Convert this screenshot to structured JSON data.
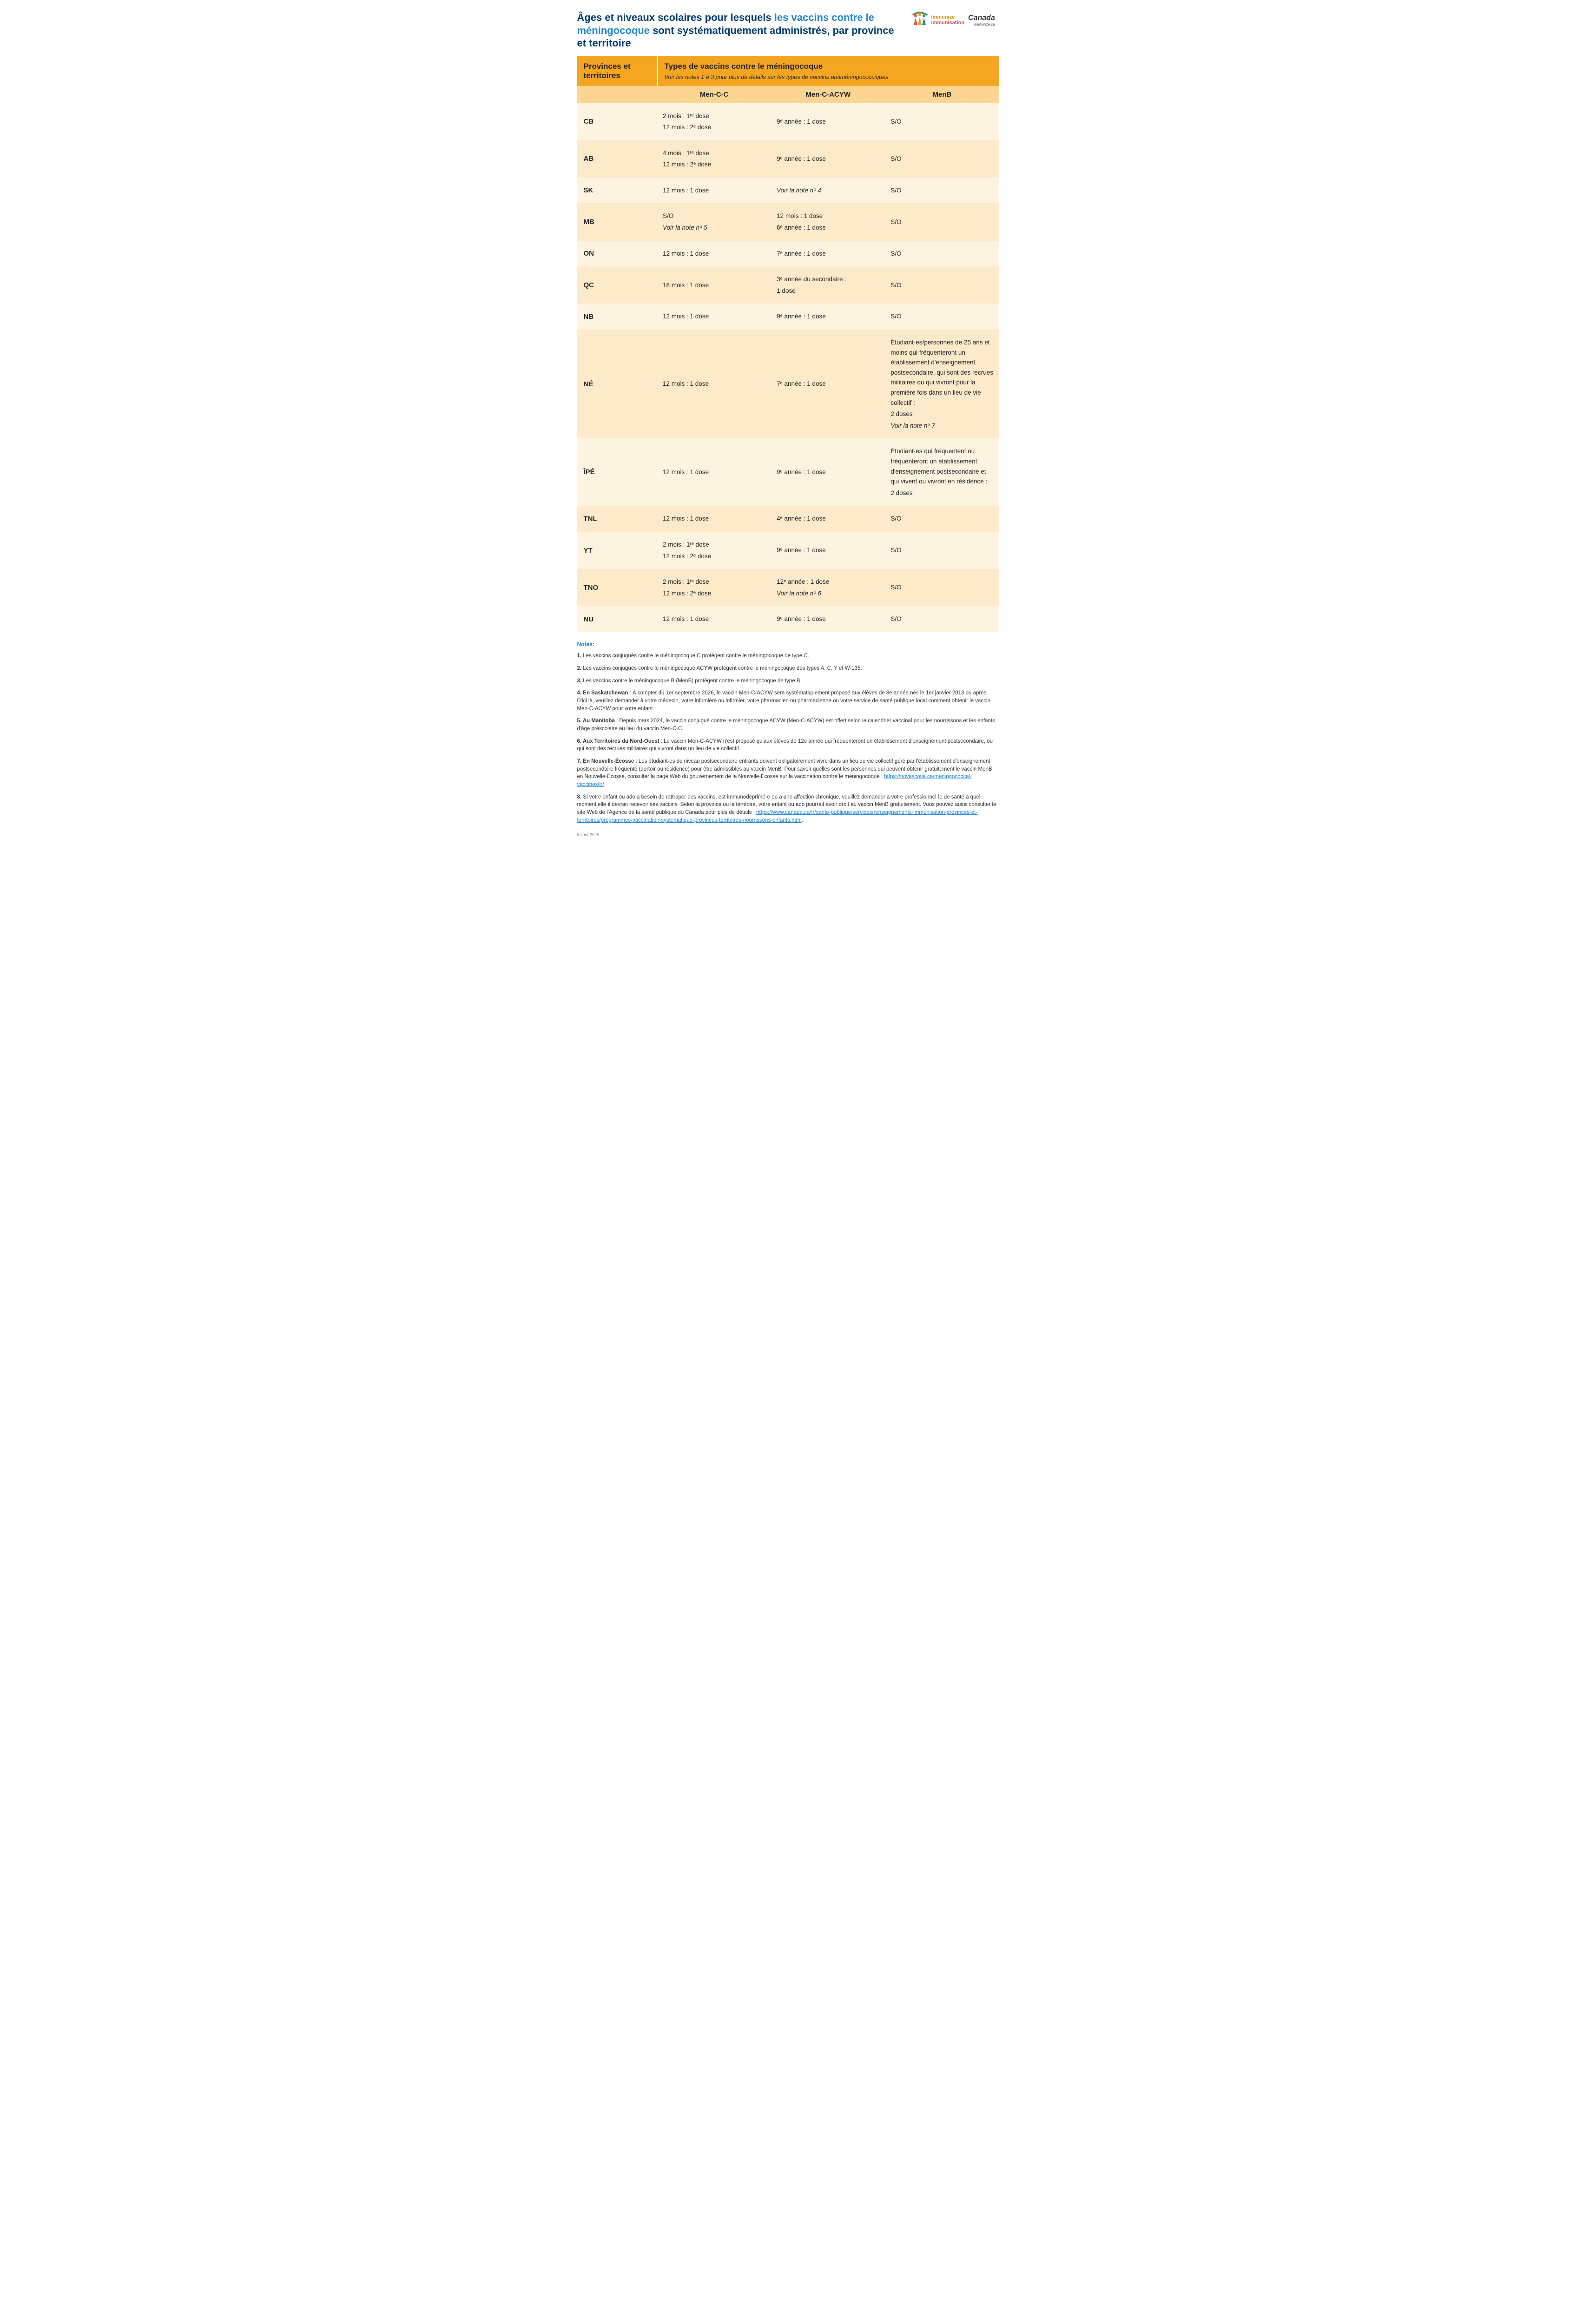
{
  "colors": {
    "title_dark": "#003b71",
    "title_accent": "#2185d0",
    "header_bg": "#f4a522",
    "colhead_bg": "#fbd591",
    "row_a": "#fdf3e1",
    "row_b": "#fdeacb",
    "text": "#222222",
    "link": "#2185d0",
    "footer": "#888888"
  },
  "title": {
    "part1": "Âges et niveaux scolaires pour lesquels ",
    "accent": "les vaccins contre le méningocoque",
    "part2": " sont systématiquement administrés, par province et territoire"
  },
  "logo": {
    "t1": "Immunize",
    "t2": "Immunisation",
    "right": "Canada",
    "sub": "immunize.ca"
  },
  "table": {
    "head_left": "Provinces et territoires",
    "head_right_big": "Types de vaccins contre le méningocoque",
    "head_right_sub": "Voir les notes 1 à 3 pour plus de détails sur les types de vaccins antiméningococciques",
    "columns": [
      "Men-C-C",
      "Men-C-ACYW",
      "MenB"
    ],
    "rows": [
      {
        "prov": "CB",
        "c1": [
          "2 mois : 1ʳᵉ dose",
          "12 mois : 2ᵉ dose"
        ],
        "c2": [
          "9ᵉ année : 1 dose"
        ],
        "c3": [
          "S/O"
        ]
      },
      {
        "prov": "AB",
        "c1": [
          "4 mois : 1ʳᵉ dose",
          "12 mois : 2ᵉ dose"
        ],
        "c2": [
          "9ᵉ année : 1 dose"
        ],
        "c3": [
          "S/O"
        ]
      },
      {
        "prov": "SK",
        "c1": [
          "12 mois : 1 dose"
        ],
        "c2": [
          {
            "text": "Voir la note nᵒ 4",
            "ital": true
          }
        ],
        "c3": [
          "S/O"
        ]
      },
      {
        "prov": "MB",
        "c1": [
          "S/O",
          {
            "text": "Voir la note nᵒ 5",
            "ital": true
          }
        ],
        "c2": [
          "12 mois : 1 dose",
          "6ᵉ année : 1 dose"
        ],
        "c3": [
          "S/O"
        ]
      },
      {
        "prov": "ON",
        "c1": [
          "12 mois : 1 dose"
        ],
        "c2": [
          "7ᵉ année : 1 dose"
        ],
        "c3": [
          "S/O"
        ]
      },
      {
        "prov": "QC",
        "c1": [
          "18 mois : 1 dose"
        ],
        "c2": [
          "3ᵉ année du secondaire :",
          "1 dose"
        ],
        "c3": [
          "S/O"
        ]
      },
      {
        "prov": "NB",
        "c1": [
          "12 mois : 1 dose"
        ],
        "c2": [
          "9ᵉ année : 1 dose"
        ],
        "c3": [
          "S/O"
        ]
      },
      {
        "prov": "NÉ",
        "c1": [
          "12 mois : 1 dose"
        ],
        "c2": [
          "7ᵉ année : 1 dose"
        ],
        "c3": [
          "Étudiant·es/personnes de 25 ans et moins qui fréquenteront un établissement d'enseignement postsecondaire, qui sont des recrues militaires ou qui vivront pour la première fois dans un lieu de vie collectif :",
          "2 doses",
          {
            "text": "Voir la note nᵒ 7",
            "ital": true
          }
        ]
      },
      {
        "prov": "ÎPÉ",
        "c1": [
          "12 mois : 1 dose"
        ],
        "c2": [
          "9ᵉ année : 1 dose"
        ],
        "c3": [
          "Étudiant·es qui fréquentent ou fréquenteront un établissement d'enseignement postsecondaire et qui vivent ou vivront en résidence :",
          "2 doses"
        ]
      },
      {
        "prov": "TNL",
        "c1": [
          "12 mois : 1 dose"
        ],
        "c2": [
          "4ᵉ année : 1 dose"
        ],
        "c3": [
          "S/O"
        ]
      },
      {
        "prov": "YT",
        "c1": [
          "2 mois : 1ʳᵉ dose",
          "12 mois : 2ᵉ dose"
        ],
        "c2": [
          "9ᵉ année : 1 dose"
        ],
        "c3": [
          "S/O"
        ]
      },
      {
        "prov": "TNO",
        "c1": [
          "2 mois : 1ʳᵉ dose",
          "12 mois : 2ᵉ dose"
        ],
        "c2": [
          "12ᵉ année : 1 dose",
          {
            "text": "Voir la note nᵒ 6",
            "ital": true
          }
        ],
        "c3": [
          "S/O"
        ]
      },
      {
        "prov": "NU",
        "c1": [
          "12 mois : 1 dose"
        ],
        "c2": [
          "9ᵉ année : 1 dose"
        ],
        "c3": [
          "S/O"
        ]
      }
    ]
  },
  "notes": {
    "header": "Notes:",
    "items": [
      {
        "bold": "1.",
        "text": " Les vaccins conjugués contre le méningocoque C protègent contre le méningocoque de type C."
      },
      {
        "bold": "2.",
        "text": " Les vaccins conjugués contre le méningocoque ACYW protègent contre le méningocoque des types A, C, Y et W-135."
      },
      {
        "bold": "3.",
        "text": " Les vaccins contre le méningocoque B (MenB) protègent contre le méningocoque de type B."
      },
      {
        "bold": "4. En Saskatchewan",
        "text": " : À compter du 1er septembre 2026, le vaccin Men-C-ACYW sera systématiquement proposé aux élèves de 8e année nés le 1er janvier 2013 ou après. D'ici là, veuillez demander à votre médecin, votre infirmière ou infirmier, votre pharmacien ou pharmacienne ou votre service de santé publique local comment obtenir le vaccin Men-C-ACYW pour votre enfant."
      },
      {
        "bold": "5. Au Manitoba",
        "text": " : Depuis mars 2024, le vaccin conjugué contre le méningocoque ACYW (Men-C-ACYW) est offert selon le calendrier vaccinal pour les nourrissons et les enfants d'âge préscolaire au lieu du vaccin Men-C-C."
      },
      {
        "bold": "6. Aux Territoires du Nord-Ouest",
        "text": " : Le vaccin Men-C-ACYW n'est proposé qu'aux élèves de 12e année qui fréquenteront un établissement d'enseignement postsecondaire, ou qui sont des recrues militaires qui vivront dans un lieu de vie collectif."
      },
      {
        "bold": "7. En Nouvelle-Écosse",
        "text": " : Les étudiant·es de niveau postsecondaire entrants doivent obligatoirement vivre dans un lieu de vie collectif géré par l'établissement d'enseignement postsecondaire fréquenté (dortoir ou résidence) pour être admissibles au vaccin MenB. Pour savoir quelles sont les personnes qui peuvent obtenir gratuitement le vaccin MenB en Nouvelle-Écosse, consulter la page Web du gouvernement de la Nouvelle-Écosse sur la vaccination contre le méningocoque : ",
        "link_text": "https://novascotia.ca/meningococcal-vaccines/fr/",
        "after": "."
      },
      {
        "bold": "8.",
        "text": " Si votre enfant ou ado a besoin de rattraper des vaccins, est immunodéprimé·e ou a une affection chronique, veuillez demander à votre professionnel·le de santé à quel moment elle·il devrait recevoir ses vaccins. Selon la province ou le territoire, votre enfant ou ado pourrait avoir droit au vaccin MenB gratuitement. Vous pouvez aussi consulter le site Web de l'Agence de la santé publique du Canada pour plus de détails : ",
        "link_text": "https://www.canada.ca/fr/sante-publique/services/renseignements-immunisation-provinces-et-territoires/programmes-vaccination-systematique-provinces-territoires-nourrissons-enfants.html",
        "after": "."
      }
    ]
  },
  "footer_date": "février 2025"
}
